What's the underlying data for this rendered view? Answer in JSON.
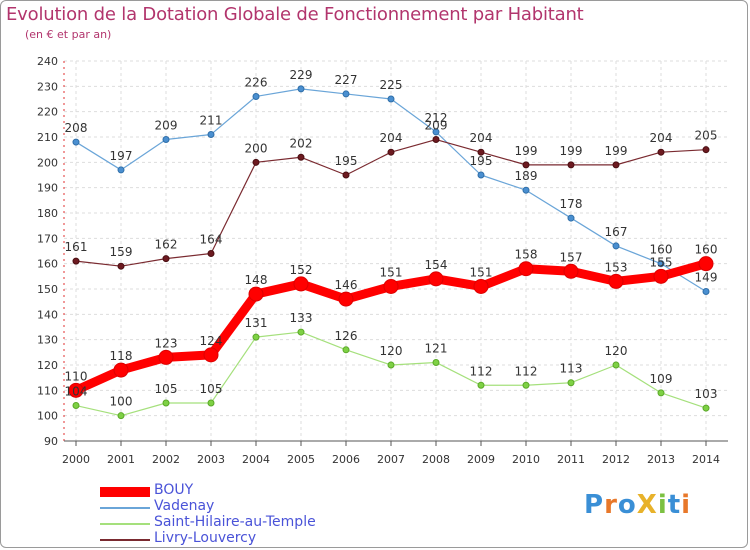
{
  "title": "Evolution de la Dotation Globale de Fonctionnement par Habitant",
  "subtitle": "(en € et par an)",
  "logo_text": "ProXiti",
  "chart_data": {
    "type": "line",
    "x": [
      2000,
      2001,
      2002,
      2003,
      2004,
      2005,
      2006,
      2007,
      2008,
      2009,
      2010,
      2011,
      2012,
      2013,
      2014
    ],
    "ylim": [
      90,
      240
    ],
    "yticks": [
      90,
      100,
      110,
      120,
      130,
      140,
      150,
      160,
      170,
      180,
      190,
      200,
      210,
      220,
      230,
      240
    ],
    "grid": true,
    "legend_position": "bottom-left",
    "series": [
      {
        "name": "BOUY",
        "color": "#ff0000",
        "values": [
          110,
          118,
          123,
          124,
          148,
          152,
          146,
          151,
          154,
          151,
          158,
          157,
          153,
          155,
          160
        ]
      },
      {
        "name": "Vadenay",
        "color": "#6aa5d8",
        "values": [
          208,
          197,
          209,
          211,
          226,
          229,
          227,
          225,
          212,
          195,
          189,
          178,
          167,
          160,
          149
        ]
      },
      {
        "name": "Saint-Hilaire-au-Temple",
        "color": "#a5e07c",
        "values": [
          104,
          100,
          105,
          105,
          131,
          133,
          126,
          120,
          121,
          112,
          112,
          113,
          120,
          109,
          103
        ]
      },
      {
        "name": "Livry-Louvercy",
        "color": "#7a2a30",
        "values": [
          161,
          159,
          162,
          164,
          200,
          202,
          195,
          204,
          209,
          204,
          199,
          199,
          199,
          204,
          205
        ]
      }
    ]
  }
}
